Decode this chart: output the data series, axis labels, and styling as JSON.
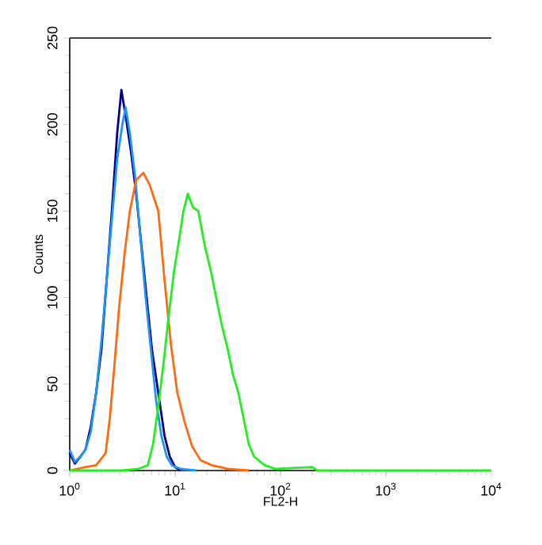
{
  "chart_data": {
    "type": "line",
    "xlabel": "FL2-H",
    "ylabel": "Counts",
    "log": "x",
    "xlim": [
      1,
      10000
    ],
    "ylim": [
      0,
      250
    ],
    "xticks": [
      {
        "value": 1,
        "label": "10$^{0}$"
      },
      {
        "value": 10,
        "label": "10$^{1}$"
      },
      {
        "value": 100,
        "label": "10$^{2}$"
      },
      {
        "value": 1000,
        "label": "10$^{3}$"
      },
      {
        "value": 10000,
        "label": "10$^{4}$"
      }
    ],
    "yticks": [
      0,
      50,
      100,
      150,
      200,
      250
    ],
    "series": [
      {
        "color": "#00008b",
        "x": [
          1,
          1.12,
          1.26,
          1.41,
          1.58,
          1.78,
          2.0,
          2.24,
          2.51,
          2.82,
          3.09,
          3.39,
          3.8,
          4.27,
          4.79,
          5.37,
          6.03,
          6.92,
          7.94,
          8.91,
          10,
          11.2
        ],
        "values": [
          10,
          4,
          8,
          12,
          25,
          45,
          70,
          110,
          150,
          195,
          220,
          205,
          185,
          160,
          130,
          100,
          70,
          45,
          20,
          8,
          2,
          0
        ]
      },
      {
        "color": "#1e96f0",
        "x": [
          1,
          1.12,
          1.26,
          1.41,
          1.58,
          1.78,
          2.0,
          2.24,
          2.51,
          2.82,
          3.16,
          3.39,
          3.72,
          4.17,
          4.68,
          5.25,
          5.89,
          6.61,
          7.41,
          8.32,
          9.33,
          11.2,
          15.8
        ],
        "values": [
          12,
          5,
          8,
          12,
          22,
          45,
          75,
          110,
          145,
          180,
          200,
          210,
          195,
          170,
          135,
          100,
          70,
          40,
          20,
          8,
          3,
          1,
          0
        ]
      },
      {
        "color": "#ff6a10",
        "x": [
          1,
          1.41,
          1.78,
          2.19,
          2.4,
          2.63,
          2.95,
          3.31,
          3.72,
          4.27,
          5.01,
          5.75,
          6.92,
          7.94,
          9.12,
          10.5,
          12.3,
          14.5,
          17.4,
          22.4,
          31.6,
          50.1
        ],
        "values": [
          0,
          2,
          3,
          10,
          30,
          58,
          95,
          125,
          150,
          168,
          172,
          165,
          150,
          110,
          73,
          45,
          28,
          14,
          6,
          3,
          1,
          0
        ]
      },
      {
        "color": "#22ee22",
        "x": [
          1,
          3.16,
          4.47,
          5.5,
          6.17,
          6.92,
          7.76,
          8.71,
          9.77,
          11,
          12,
          13.2,
          14.8,
          16.6,
          19.1,
          21.9,
          24.5,
          27.5,
          31.6,
          35.5,
          39.8,
          44.7,
          50.1,
          56.2,
          70.8,
          89.1,
          200,
          224,
          10000
        ],
        "values": [
          0,
          0,
          1,
          3,
          15,
          37,
          62,
          90,
          115,
          135,
          150,
          160,
          152,
          150,
          130,
          115,
          100,
          85,
          70,
          55,
          45,
          30,
          15,
          8,
          3,
          1,
          2,
          0,
          0
        ]
      }
    ]
  }
}
